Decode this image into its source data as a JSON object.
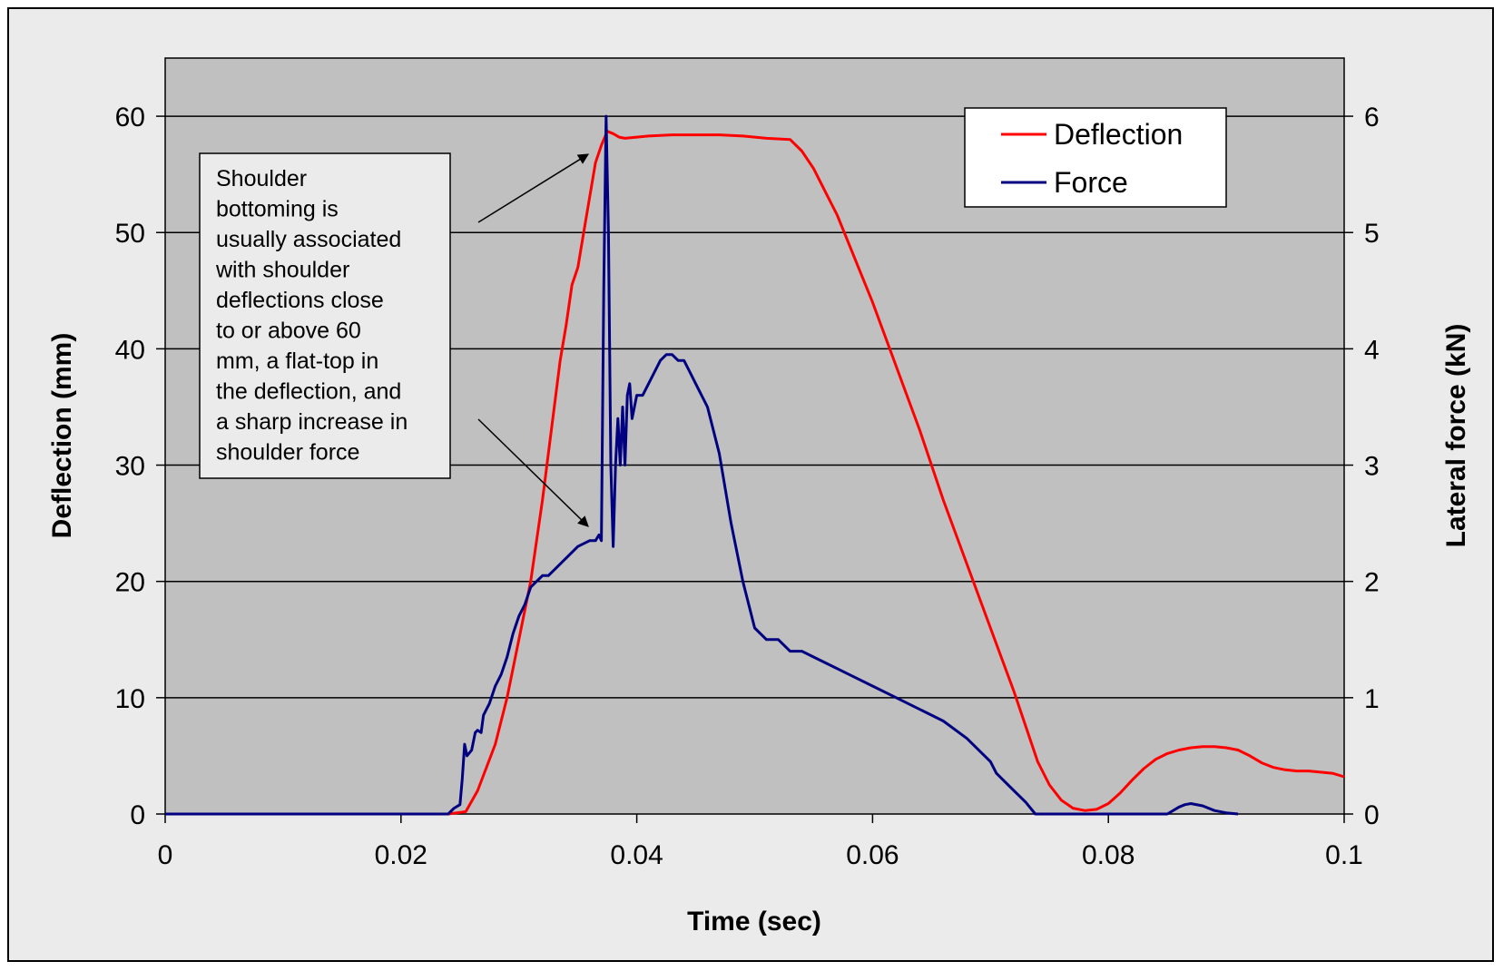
{
  "chart_data": {
    "type": "line",
    "title": "",
    "xlabel": "Time (sec)",
    "ylabel": "Deflection (mm)",
    "y2label": "Lateral force (kN)",
    "xlim": [
      0,
      0.1
    ],
    "ylim": [
      0,
      65
    ],
    "y2lim": [
      0,
      6.5
    ],
    "x_ticks": [
      "0",
      "0.02",
      "0.04",
      "0.06",
      "0.08",
      "0.1"
    ],
    "y_ticks": [
      "0",
      "10",
      "20",
      "30",
      "40",
      "50",
      "60"
    ],
    "y2_ticks": [
      "0",
      "1",
      "2",
      "3",
      "4",
      "5",
      "6"
    ],
    "grid": "horizontal",
    "plot_background": "#c0c0c0",
    "legend_position": "top-right",
    "series": [
      {
        "name": "Deflection",
        "axis": "left",
        "color": "#ff0000",
        "x": [
          0,
          0.02,
          0.024,
          0.0255,
          0.0265,
          0.028,
          0.029,
          0.03,
          0.031,
          0.032,
          0.033,
          0.0335,
          0.034,
          0.0345,
          0.035,
          0.0355,
          0.036,
          0.0365,
          0.037,
          0.0375,
          0.038,
          0.0385,
          0.039,
          0.041,
          0.043,
          0.045,
          0.047,
          0.049,
          0.051,
          0.053,
          0.054,
          0.055,
          0.056,
          0.057,
          0.058,
          0.059,
          0.06,
          0.062,
          0.064,
          0.066,
          0.068,
          0.07,
          0.072,
          0.074,
          0.075,
          0.076,
          0.077,
          0.078,
          0.079,
          0.08,
          0.081,
          0.082,
          0.083,
          0.084,
          0.085,
          0.086,
          0.087,
          0.088,
          0.089,
          0.09,
          0.091,
          0.092,
          0.093,
          0.094,
          0.095,
          0.096,
          0.097,
          0.098,
          0.099,
          0.1
        ],
        "y": [
          0,
          0,
          0,
          0.2,
          2,
          6,
          10,
          15,
          20,
          27,
          35,
          39,
          42,
          45.5,
          47,
          50,
          53,
          56,
          57.5,
          58.7,
          58.5,
          58.2,
          58.1,
          58.3,
          58.4,
          58.4,
          58.4,
          58.3,
          58.1,
          58.0,
          57.0,
          55.5,
          53.5,
          51.5,
          49.0,
          46.5,
          44.0,
          38.5,
          33.0,
          27.0,
          21.5,
          16.0,
          10.5,
          4.5,
          2.5,
          1.2,
          0.5,
          0.3,
          0.4,
          0.9,
          1.8,
          2.9,
          3.9,
          4.7,
          5.2,
          5.5,
          5.7,
          5.8,
          5.8,
          5.7,
          5.5,
          5.0,
          4.4,
          4.0,
          3.8,
          3.7,
          3.7,
          3.6,
          3.5,
          3.2
        ]
      },
      {
        "name": "Force",
        "axis": "right",
        "color": "#000080",
        "x": [
          0,
          0.024,
          0.0245,
          0.025,
          0.0252,
          0.0254,
          0.0256,
          0.026,
          0.0263,
          0.0265,
          0.0268,
          0.027,
          0.0275,
          0.028,
          0.0285,
          0.029,
          0.0295,
          0.03,
          0.0305,
          0.031,
          0.0315,
          0.032,
          0.0325,
          0.033,
          0.034,
          0.035,
          0.036,
          0.0365,
          0.0368,
          0.037,
          0.0372,
          0.0374,
          0.0376,
          0.0378,
          0.038,
          0.0382,
          0.0384,
          0.0386,
          0.0388,
          0.039,
          0.0392,
          0.0394,
          0.0396,
          0.0398,
          0.04,
          0.0405,
          0.041,
          0.0415,
          0.042,
          0.0425,
          0.043,
          0.0435,
          0.044,
          0.0445,
          0.045,
          0.046,
          0.047,
          0.048,
          0.049,
          0.05,
          0.051,
          0.052,
          0.053,
          0.054,
          0.055,
          0.056,
          0.058,
          0.06,
          0.062,
          0.064,
          0.066,
          0.068,
          0.07,
          0.0705,
          0.071,
          0.0715,
          0.072,
          0.073,
          0.0738,
          0.085,
          0.086,
          0.0865,
          0.087,
          0.088,
          0.089,
          0.09,
          0.091
        ],
        "y": [
          0,
          0,
          0.05,
          0.08,
          0.3,
          0.6,
          0.5,
          0.55,
          0.7,
          0.72,
          0.7,
          0.85,
          0.95,
          1.1,
          1.2,
          1.35,
          1.55,
          1.7,
          1.8,
          1.95,
          2.0,
          2.05,
          2.05,
          2.1,
          2.2,
          2.3,
          2.35,
          2.35,
          2.4,
          2.35,
          4.5,
          6.0,
          5.0,
          3.0,
          2.3,
          3.0,
          3.4,
          3.0,
          3.5,
          3.0,
          3.6,
          3.7,
          3.4,
          3.5,
          3.6,
          3.6,
          3.7,
          3.8,
          3.9,
          3.95,
          3.95,
          3.9,
          3.9,
          3.8,
          3.7,
          3.5,
          3.1,
          2.5,
          2.0,
          1.6,
          1.5,
          1.5,
          1.4,
          1.4,
          1.35,
          1.3,
          1.2,
          1.1,
          1.0,
          0.9,
          0.8,
          0.65,
          0.45,
          0.35,
          0.3,
          0.25,
          0.2,
          0.1,
          0,
          0,
          0.06,
          0.08,
          0.09,
          0.07,
          0.03,
          0.01,
          0
        ]
      }
    ],
    "annotations": [
      {
        "text_lines": [
          "Shoulder",
          "bottoming is",
          "usually associated",
          "with shoulder",
          "deflections close",
          "to or above 60",
          "mm, a flat-top in",
          "the deflection, and",
          "a sharp increase in",
          "shoulder force"
        ]
      }
    ]
  }
}
